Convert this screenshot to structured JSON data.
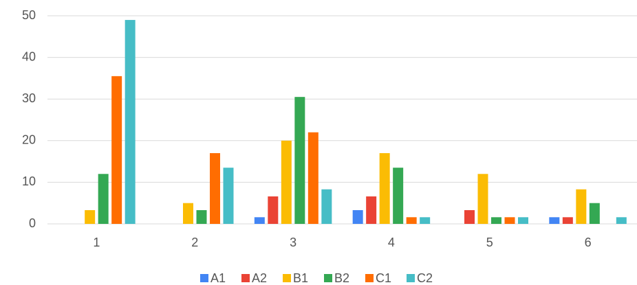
{
  "chart_data": {
    "type": "bar",
    "categories": [
      "1",
      "2",
      "3",
      "4",
      "5",
      "6"
    ],
    "series": [
      {
        "name": "A1",
        "color": "#4285f4",
        "values": [
          0,
          0,
          1.6,
          3.3,
          0,
          1.6
        ]
      },
      {
        "name": "A2",
        "color": "#ea4335",
        "values": [
          0,
          0,
          6.6,
          6.6,
          3.3,
          1.6
        ]
      },
      {
        "name": "B1",
        "color": "#fbbc04",
        "values": [
          3.3,
          5,
          20,
          17,
          12,
          8.3
        ]
      },
      {
        "name": "B2",
        "color": "#34a853",
        "values": [
          12,
          3.3,
          30.5,
          13.5,
          1.6,
          5
        ]
      },
      {
        "name": "C1",
        "color": "#ff6d01",
        "values": [
          35.5,
          17,
          22,
          1.6,
          1.6,
          0
        ]
      },
      {
        "name": "C2",
        "color": "#46bdc6",
        "values": [
          49,
          13.5,
          8.3,
          1.6,
          1.6,
          1.6
        ]
      }
    ],
    "ylim": [
      0,
      50
    ],
    "yticks": [
      0,
      10,
      20,
      30,
      40,
      50
    ],
    "grid": true,
    "legend": "bottom"
  }
}
